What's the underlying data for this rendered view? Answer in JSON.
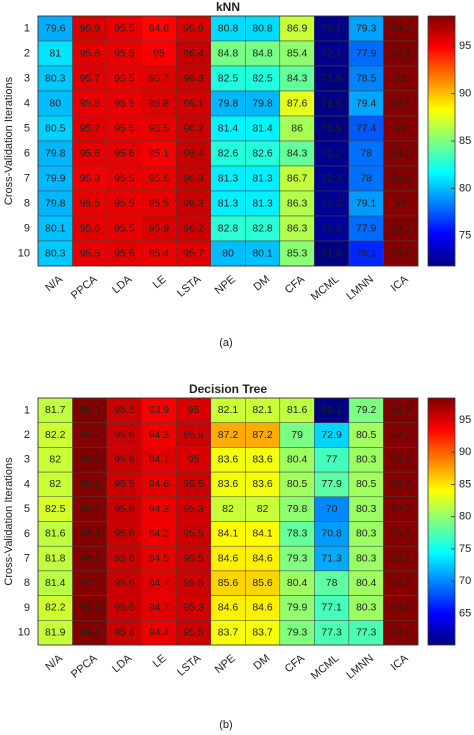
{
  "chart_data": [
    {
      "type": "heatmap",
      "title": "kNN",
      "caption": "(a)",
      "y_label": "Cross-Validation Iterations",
      "colormap": "jet",
      "x_categories": [
        "N/A",
        "PPCA",
        "LDA",
        "LE",
        "LSTA",
        "NPE",
        "DM",
        "CFA",
        "MCML",
        "LMNN",
        "ICA"
      ],
      "y_categories": [
        1,
        2,
        3,
        4,
        5,
        6,
        7,
        8,
        9,
        10
      ],
      "values": [
        [
          79.6,
          95.9,
          95.5,
          94.8,
          95.9,
          80.8,
          80.8,
          86.9,
          72.1,
          79.3,
          98.1
        ],
        [
          81,
          95.6,
          95.5,
          95,
          96.4,
          84.8,
          84.8,
          85.4,
          72.1,
          77.9,
          98.2
        ],
        [
          80.3,
          95.7,
          95.5,
          95.7,
          96.3,
          82.5,
          82.5,
          84.3,
          71.9,
          78.5,
          98
        ],
        [
          80,
          95.5,
          95.5,
          95.8,
          96.1,
          79.8,
          79.8,
          87.6,
          71.9,
          79.4,
          98.1
        ],
        [
          80.5,
          95.7,
          95.5,
          95.5,
          96.2,
          81.4,
          81.4,
          86,
          71.9,
          77.4,
          98
        ],
        [
          79.8,
          95.6,
          95.6,
          95.1,
          96.4,
          82.6,
          82.6,
          84.3,
          72.2,
          78,
          98.1
        ],
        [
          79.9,
          95.3,
          95.5,
          95.5,
          96.3,
          81.3,
          81.3,
          86.7,
          72.3,
          78,
          98.1
        ],
        [
          79.8,
          95.5,
          95.5,
          95.5,
          96.3,
          81.3,
          81.3,
          86.3,
          72.3,
          79.1,
          98
        ],
        [
          80.1,
          95.6,
          95.5,
          95.9,
          96.2,
          82.8,
          82.8,
          86.3,
          72.5,
          77.9,
          98.1
        ],
        [
          80.3,
          95.5,
          95.6,
          95.4,
          95.7,
          80,
          80.1,
          85.3,
          71.8,
          76.1,
          98.1
        ]
      ],
      "clim": [
        71.8,
        98.2
      ],
      "cticks": [
        75,
        80,
        85,
        90,
        95
      ]
    },
    {
      "type": "heatmap",
      "title": "Decision Tree",
      "caption": "(b)",
      "y_label": "Cross-Validation Iterations",
      "colormap": "jet",
      "x_categories": [
        "N/A",
        "PPCA",
        "LDA",
        "LE",
        "LSTA",
        "NPE",
        "DM",
        "CFA",
        "MCML",
        "LMNN",
        "ICA"
      ],
      "y_categories": [
        1,
        2,
        3,
        4,
        5,
        6,
        7,
        8,
        9,
        10
      ],
      "values": [
        [
          81.7,
          98.3,
          95.5,
          93.9,
          95,
          82.1,
          82.1,
          81.6,
          60.1,
          79.2,
          98.3
        ],
        [
          82.2,
          98.2,
          95.6,
          94.3,
          95.5,
          87.2,
          87.2,
          79,
          72.9,
          80.5,
          98.2
        ],
        [
          82,
          98.4,
          95.6,
          94.7,
          95,
          83.6,
          83.6,
          80.4,
          77,
          80.3,
          98.2
        ],
        [
          82,
          98.2,
          95.5,
          94.6,
          95.5,
          83.6,
          83.6,
          80.5,
          77.9,
          80.5,
          98.2
        ],
        [
          82.5,
          98.2,
          95.6,
          94.3,
          95.3,
          82,
          82,
          79.8,
          70,
          80.3,
          98.2
        ],
        [
          81.6,
          98.3,
          95.6,
          94.2,
          95.5,
          84.1,
          84.1,
          78.3,
          70.8,
          80.3,
          98.1
        ],
        [
          81.8,
          98.2,
          95.6,
          94.5,
          95.5,
          84.6,
          84.6,
          79.3,
          71.3,
          80.3,
          98.1
        ],
        [
          81.4,
          98.2,
          95.6,
          94.7,
          95.5,
          85.6,
          85.6,
          80.4,
          78,
          80.4,
          98.2
        ],
        [
          82.2,
          98.4,
          95.6,
          94.7,
          95.3,
          84.6,
          84.6,
          79.9,
          77.1,
          80.3,
          98.1
        ],
        [
          81.9,
          98.3,
          95.6,
          94.4,
          95.5,
          83.7,
          83.7,
          79.3,
          77.3,
          77.3,
          98.1
        ]
      ],
      "clim": [
        60.1,
        98.4
      ],
      "cticks": [
        65,
        70,
        75,
        80,
        85,
        90,
        95
      ]
    }
  ]
}
